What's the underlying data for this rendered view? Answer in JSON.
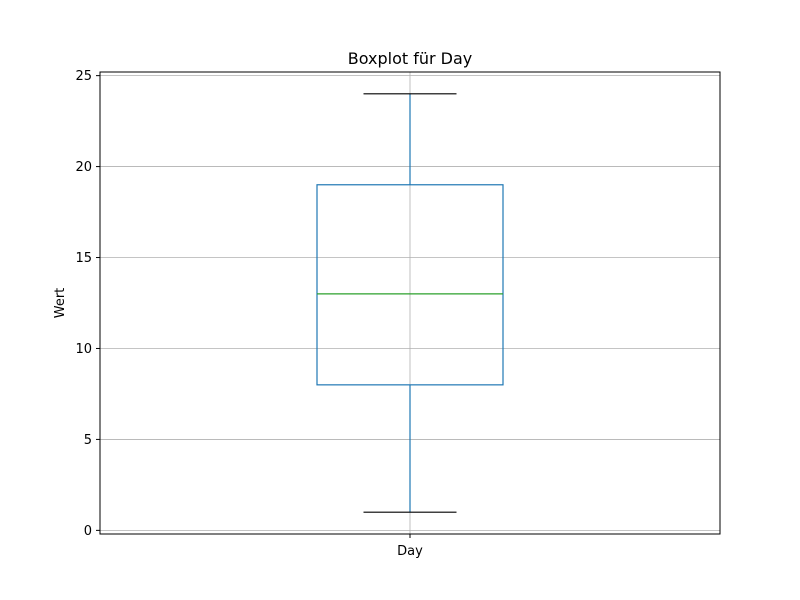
{
  "chart_data": {
    "type": "box",
    "title": "Boxplot für Day",
    "xlabel": "",
    "ylabel": "Wert",
    "categories": [
      "Day"
    ],
    "boxes": [
      {
        "category": "Day",
        "whisker_low": 1,
        "q1": 8,
        "median": 13,
        "q3": 19,
        "whisker_high": 24
      }
    ],
    "ylim": [
      -0.2,
      25.2
    ],
    "yticks": [
      0,
      5,
      10,
      15,
      20,
      25
    ],
    "ytick_labels": [
      "0",
      "5",
      "10",
      "15",
      "20",
      "25"
    ],
    "grid": true,
    "colors": {
      "box": "#1f77b4",
      "whisker": "#1f77b4",
      "cap": "#000000",
      "median": "#2ca02c",
      "grid": "#b0b0b0",
      "axes": "#000000"
    }
  }
}
